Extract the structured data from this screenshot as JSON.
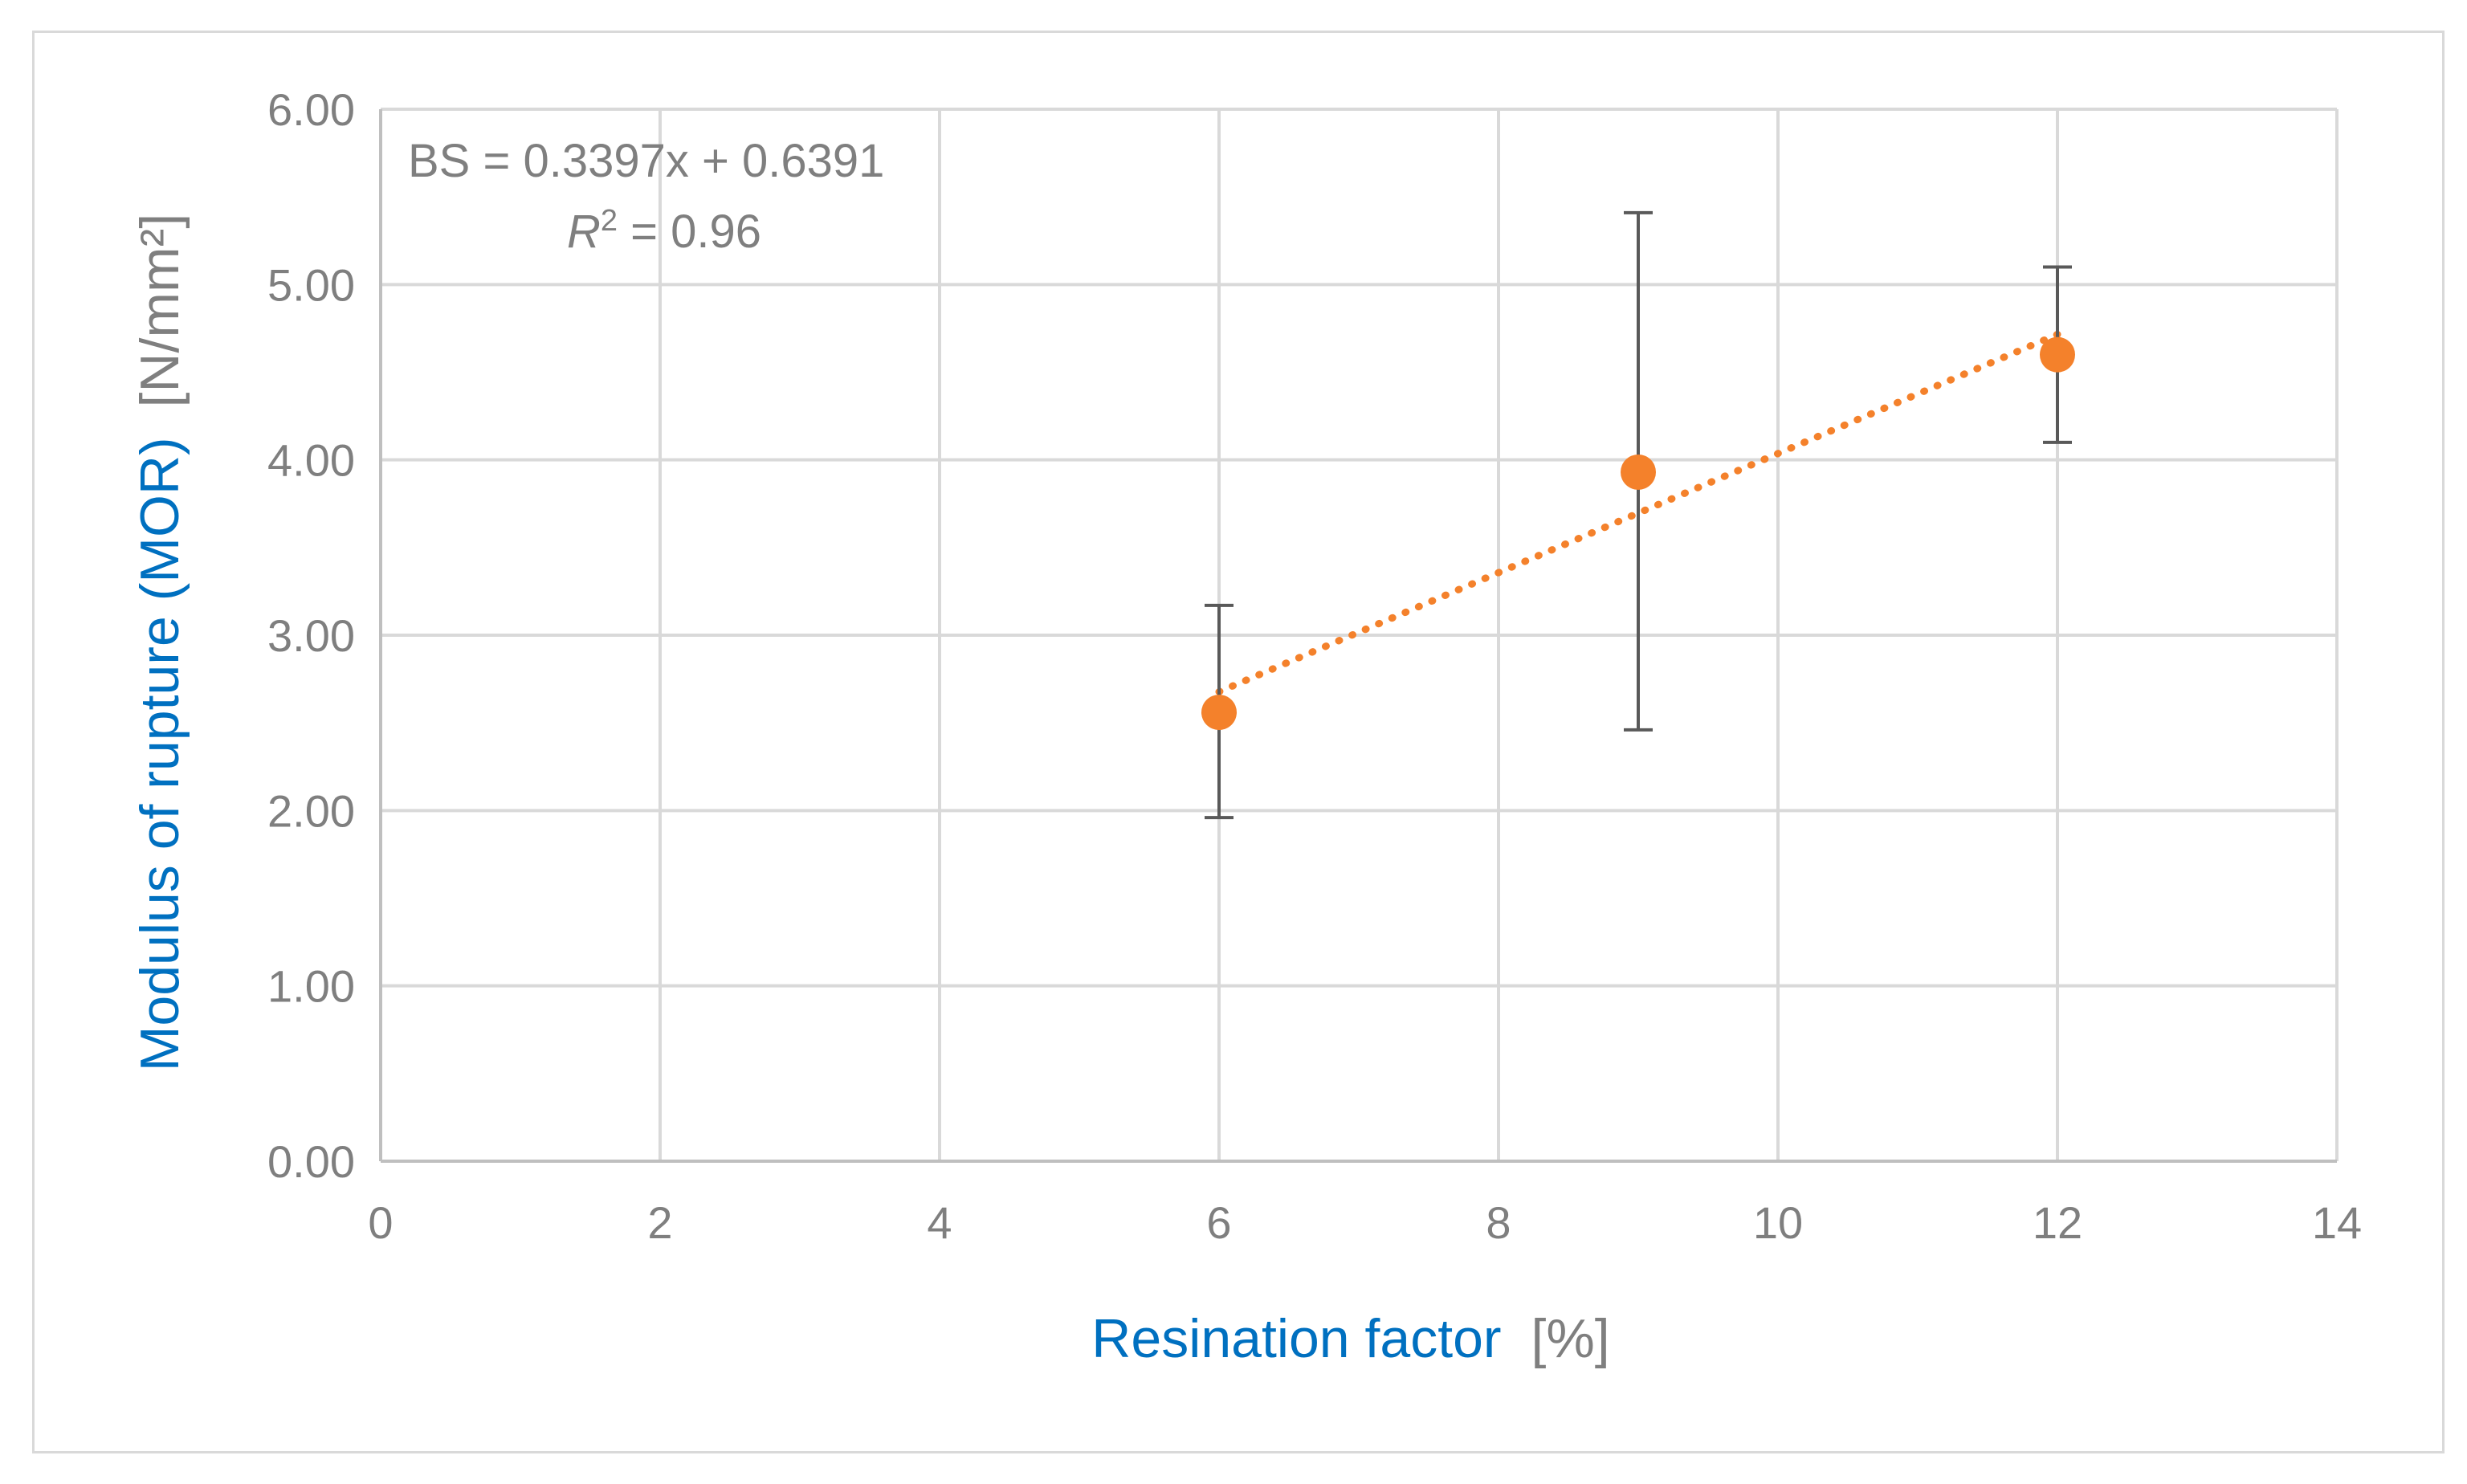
{
  "chart_data": {
    "type": "scatter",
    "title": "",
    "xlabel": {
      "main": "Resination factor",
      "unit": "[%]"
    },
    "ylabel": {
      "main": "Modulus of rupture (MOR)",
      "unit": "[N/mm²]"
    },
    "xlim": [
      0,
      14
    ],
    "ylim": [
      0,
      6
    ],
    "x_ticks": [
      0,
      2,
      4,
      6,
      8,
      10,
      12,
      14
    ],
    "y_ticks": [
      0,
      1,
      2,
      3,
      4,
      5,
      6
    ],
    "x_tick_labels": [
      "0",
      "2",
      "4",
      "6",
      "8",
      "10",
      "12",
      "14"
    ],
    "y_tick_labels": [
      "0.00",
      "1.00",
      "2.00",
      "3.00",
      "4.00",
      "5.00",
      "6.00"
    ],
    "grid": true,
    "series": [
      {
        "x": [
          6,
          9,
          12
        ],
        "y": [
          2.56,
          3.93,
          4.6
        ],
        "error_low": [
          1.96,
          2.46,
          4.1
        ],
        "error_high": [
          3.17,
          5.41,
          5.1
        ],
        "color": "#f4812b",
        "error_color": "#595959"
      }
    ],
    "trendline": {
      "type": "linear",
      "slope": 0.3397,
      "intercept": 0.6391,
      "x_range": [
        6,
        12
      ],
      "style": "dotted",
      "color": "#f4812b",
      "equation_text": "BS = 0.3397x + 0.6391",
      "r2_symbol": "R",
      "r2_exponent": "2",
      "r2_value": " = 0.96"
    },
    "colors": {
      "axis_title": "#0070c0",
      "unit_text": "#7f7f7f",
      "grid": "#d9d9d9",
      "tick_text": "#7f7f7f"
    }
  }
}
